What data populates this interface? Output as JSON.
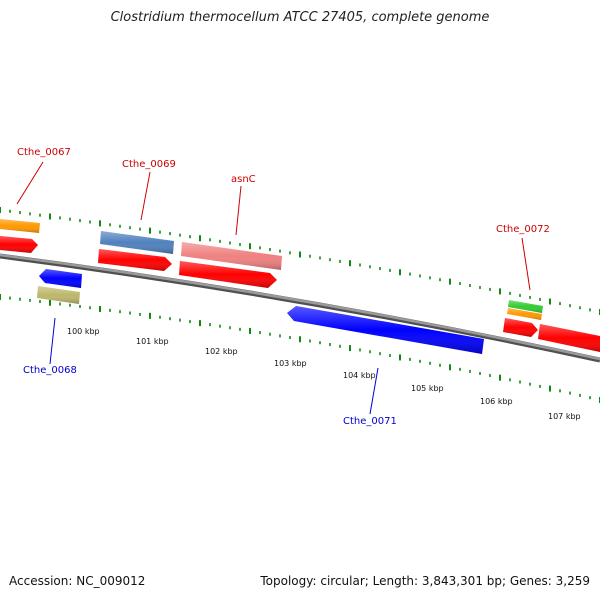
{
  "title": "Clostridium thermocellum ATCC 27405, complete genome",
  "footer": {
    "accession": "Accession: NC_009012",
    "topology": "Topology: circular; Length: 3,843,301 bp; Genes: 3,259"
  },
  "scale_labels": [
    "100 kbp",
    "101 kbp",
    "102 kbp",
    "103 kbp",
    "104 kbp",
    "105 kbp",
    "106 kbp",
    "107 kbp"
  ],
  "gene_labels": {
    "top": [
      "Cthe_0067",
      "Cthe_0069",
      "asnC",
      "Cthe_0072"
    ],
    "bottom": [
      "Cthe_0068",
      "Cthe_0071"
    ]
  },
  "colors": {
    "label_top": "#cc0000",
    "label_bottom": "#0000cc",
    "backbone": "#808080",
    "ticks": "#118811",
    "cds": "#ff0000",
    "blue_feature": "#0000ff",
    "orange_feature": "#ff9900",
    "steelblue_feature": "#4f81bd",
    "pink_feature": "#f08080",
    "khaki_feature": "#bdb76b",
    "green_feature": "#33cc33"
  }
}
